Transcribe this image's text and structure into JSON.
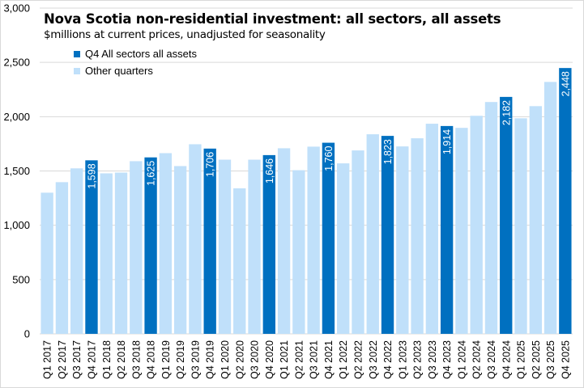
{
  "colors": {
    "highlight": "#0070C0",
    "other": "#C0E0FA",
    "grid": "#d9d9d9",
    "label_text": "#ffffff",
    "axis_text": "#000000"
  },
  "chart_data": {
    "type": "bar",
    "title": "Nova Scotia non-residential investment: all sectors, all assets",
    "subtitle": "$millions at current prices, unadjusted for seasonality",
    "xlabel": "",
    "ylabel": "",
    "ylim": [
      0,
      3000
    ],
    "yticks": [
      0,
      500,
      1000,
      1500,
      2000,
      2500,
      3000
    ],
    "ytick_labels": [
      "0",
      "500",
      "1,000",
      "1,500",
      "2,000",
      "2,500",
      "3,000"
    ],
    "grid": true,
    "legend": {
      "placement": "top-left",
      "entries": [
        {
          "label": "Q4 All sectors all assets",
          "series": "highlight"
        },
        {
          "label": "Other quarters",
          "series": "other"
        }
      ]
    },
    "categories": [
      "Q1 2017",
      "Q2 2017",
      "Q3 2017",
      "Q4 2017",
      "Q1 2018",
      "Q2 2018",
      "Q3 2018",
      "Q4 2018",
      "Q1 2019",
      "Q2 2019",
      "Q3 2019",
      "Q4 2019",
      "Q1 2020",
      "Q2 2020",
      "Q3 2020",
      "Q4 2020",
      "Q1 2021",
      "Q2 2021",
      "Q3 2021",
      "Q4 2021",
      "Q1 2022",
      "Q2 2022",
      "Q3 2022",
      "Q4 2022",
      "Q1 2023",
      "Q2 2023",
      "Q3 2023",
      "Q4 2023",
      "Q1 2024",
      "Q2 2024",
      "Q3 2024",
      "Q4 2024",
      "Q1 2025",
      "Q2 2025",
      "Q3 2025",
      "Q4 2025"
    ],
    "values": [
      1300,
      1397,
      1524,
      1598,
      1478,
      1485,
      1590,
      1625,
      1664,
      1545,
      1746,
      1706,
      1604,
      1340,
      1604,
      1646,
      1709,
      1507,
      1724,
      1760,
      1570,
      1689,
      1838,
      1823,
      1726,
      1801,
      1935,
      1914,
      1897,
      2008,
      2135,
      2182,
      1985,
      2097,
      2320,
      2448
    ],
    "highlighted": [
      false,
      false,
      false,
      true,
      false,
      false,
      false,
      true,
      false,
      false,
      false,
      true,
      false,
      false,
      false,
      true,
      false,
      false,
      false,
      true,
      false,
      false,
      false,
      true,
      false,
      false,
      false,
      true,
      false,
      false,
      false,
      true,
      false,
      false,
      false,
      true
    ],
    "data_labels": [
      "",
      "",
      "",
      "1,598",
      "",
      "",
      "",
      "1,625",
      "",
      "",
      "",
      "1,706",
      "",
      "",
      "",
      "1,646",
      "",
      "",
      "",
      "1,760",
      "",
      "",
      "",
      "1,823",
      "",
      "",
      "",
      "1,914",
      "",
      "",
      "",
      "2,182",
      "",
      "",
      "",
      "2,448"
    ]
  }
}
